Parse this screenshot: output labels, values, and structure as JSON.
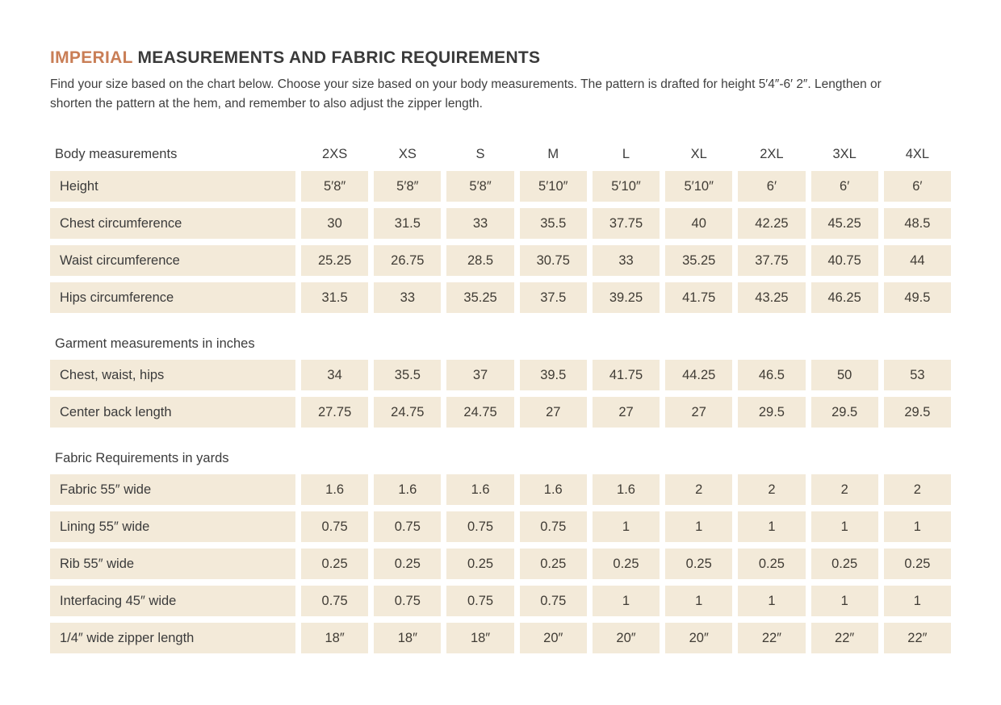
{
  "page": {
    "title_accent": "IMPERIAL",
    "title_rest": " MEASUREMENTS AND FABRIC REQUIREMENTS",
    "subtitle": "Find your size based on the chart below. Choose your size based on your body measurements. The pattern is drafted for height 5′4″-6′ 2″. Lengthen or shorten the pattern at the hem, and remember to also adjust the zipper length."
  },
  "colors": {
    "accent": "#c97e56",
    "cell_background": "#f3ead9",
    "text": "#3a3a3a"
  },
  "chart_data": {
    "type": "table",
    "columns": [
      "Body measurements",
      "2XS",
      "XS",
      "S",
      "M",
      "L",
      "XL",
      "2XL",
      "3XL",
      "4XL"
    ],
    "sections": [
      {
        "heading": "",
        "rows": [
          {
            "label": "Height",
            "values": [
              "5′8″",
              "5′8″",
              "5′8″",
              "5′10″",
              "5′10″",
              "5′10″",
              "6′",
              "6′",
              "6′"
            ]
          },
          {
            "label": "Chest circumference",
            "values": [
              "30",
              "31.5",
              "33",
              "35.5",
              "37.75",
              "40",
              "42.25",
              "45.25",
              "48.5"
            ]
          },
          {
            "label": "Waist circumference",
            "values": [
              "25.25",
              "26.75",
              "28.5",
              "30.75",
              "33",
              "35.25",
              "37.75",
              "40.75",
              "44"
            ]
          },
          {
            "label": "Hips circumference",
            "values": [
              "31.5",
              "33",
              "35.25",
              "37.5",
              "39.25",
              "41.75",
              "43.25",
              "46.25",
              "49.5"
            ]
          }
        ]
      },
      {
        "heading": "Garment measurements in inches",
        "rows": [
          {
            "label": "Chest, waist, hips",
            "values": [
              "34",
              "35.5",
              "37",
              "39.5",
              "41.75",
              "44.25",
              "46.5",
              "50",
              "53"
            ]
          },
          {
            "label": "Center back length",
            "values": [
              "27.75",
              "24.75",
              "24.75",
              "27",
              "27",
              "27",
              "29.5",
              "29.5",
              "29.5"
            ]
          }
        ]
      },
      {
        "heading": "Fabric Requirements in yards",
        "rows": [
          {
            "label": "Fabric 55″ wide",
            "values": [
              "1.6",
              "1.6",
              "1.6",
              "1.6",
              "1.6",
              "2",
              "2",
              "2",
              "2"
            ]
          },
          {
            "label": "Lining 55″ wide",
            "values": [
              "0.75",
              "0.75",
              "0.75",
              "0.75",
              "1",
              "1",
              "1",
              "1",
              "1"
            ]
          },
          {
            "label": "Rib 55″ wide",
            "values": [
              "0.25",
              "0.25",
              "0.25",
              "0.25",
              "0.25",
              "0.25",
              "0.25",
              "0.25",
              "0.25"
            ]
          },
          {
            "label": "Interfacing 45″ wide",
            "values": [
              "0.75",
              "0.75",
              "0.75",
              "0.75",
              "1",
              "1",
              "1",
              "1",
              "1"
            ]
          },
          {
            "label": "1/4″ wide zipper length",
            "values": [
              "18″",
              "18″",
              "18″",
              "20″",
              "20″",
              "20″",
              "22″",
              "22″",
              "22″"
            ]
          }
        ]
      }
    ]
  }
}
